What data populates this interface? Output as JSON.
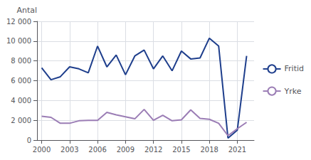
{
  "chart_data": {
    "type": "line",
    "y_label": "Antal",
    "x": [
      2000,
      2001,
      2002,
      2003,
      2004,
      2005,
      2006,
      2007,
      2008,
      2009,
      2010,
      2011,
      2012,
      2013,
      2014,
      2015,
      2016,
      2017,
      2018,
      2019,
      2020,
      2021,
      2022
    ],
    "series": [
      {
        "name": "Fritid",
        "color": "#1e3e8c",
        "values": [
          7300,
          6100,
          6400,
          7400,
          7200,
          6800,
          9500,
          7400,
          8600,
          6600,
          8500,
          9100,
          7200,
          8500,
          7000,
          9000,
          8200,
          8300,
          10300,
          9500,
          200,
          1000,
          8500
        ]
      },
      {
        "name": "Yrke",
        "color": "#9b7db5",
        "values": [
          2400,
          2300,
          1700,
          1700,
          1950,
          2000,
          2000,
          2800,
          2550,
          2350,
          2150,
          3100,
          2000,
          2500,
          1950,
          2050,
          3050,
          2200,
          2100,
          1700,
          450,
          1150,
          1800
        ]
      }
    ],
    "xlim": [
      1999.5,
      2022.8
    ],
    "xticks": [
      2000,
      2003,
      2006,
      2009,
      2012,
      2015,
      2018,
      2021
    ],
    "ylim": [
      0,
      12000
    ],
    "yticks": [
      0,
      {
        "value": 2000,
        "label": "2 000"
      },
      {
        "value": 4000,
        "label": "4 000"
      },
      {
        "value": 6000,
        "label": "6 000"
      },
      {
        "value": 8000,
        "label": "8 000"
      },
      {
        "value": 10000,
        "label": "10 000"
      },
      {
        "value": 12000,
        "label": "12 000"
      }
    ],
    "grid": true,
    "legend": "right"
  }
}
